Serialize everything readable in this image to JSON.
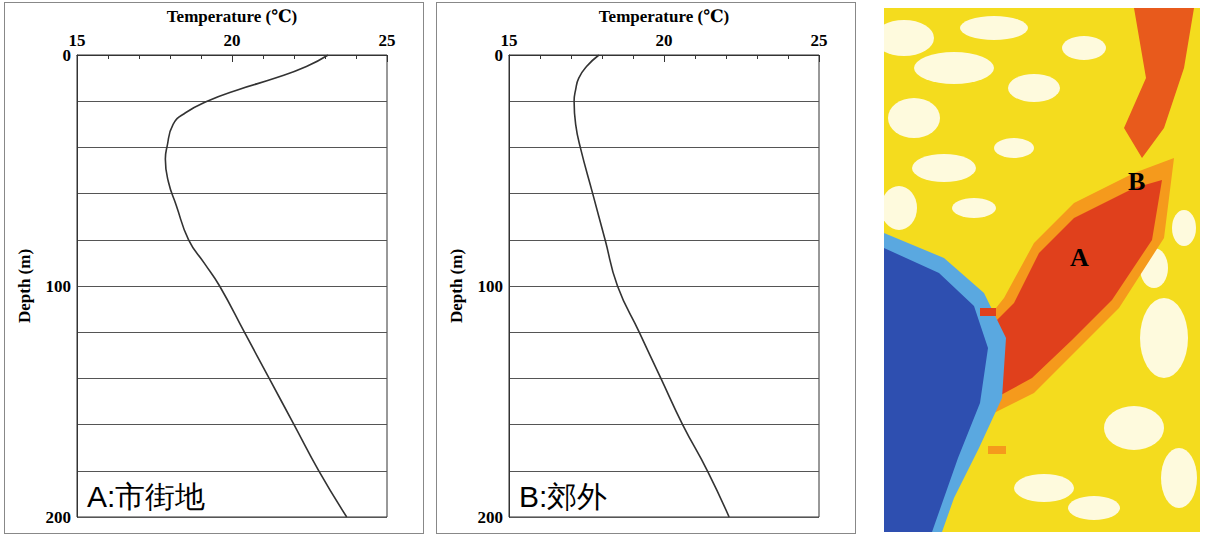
{
  "chart_data": [
    {
      "type": "line",
      "annotation": "A:市街地",
      "x_label": "Temperature (℃)",
      "y_label": "Depth (m)",
      "x": [
        23.1,
        22.4,
        21.4,
        20.2,
        19.2,
        18.5,
        18.1,
        17.9,
        17.85,
        17.95,
        18.2,
        18.6,
        19.1,
        19.6,
        20.4,
        21.2,
        22.0,
        22.8,
        23.7
      ],
      "y": [
        0,
        5,
        10,
        15,
        20,
        25,
        30,
        40,
        45,
        55,
        65,
        80,
        90,
        100,
        120,
        140,
        160,
        180,
        200
      ],
      "color": "#333333",
      "xlim": [
        15,
        25
      ],
      "xticks": [
        15,
        20,
        25
      ],
      "ylim": [
        0,
        200
      ],
      "yticks": [
        0,
        100,
        200
      ],
      "grid": true
    },
    {
      "type": "line",
      "annotation": "B:郊外",
      "x_label": "Temperature (℃)",
      "y_label": "Depth (m)",
      "x": [
        17.9,
        17.5,
        17.25,
        17.15,
        17.1,
        17.15,
        17.3,
        17.7,
        18.1,
        18.5,
        19.2,
        19.9,
        20.6,
        21.4,
        22.1
      ],
      "y": [
        0,
        5,
        10,
        15,
        20,
        30,
        40,
        60,
        80,
        100,
        120,
        140,
        160,
        180,
        200
      ],
      "color": "#333333",
      "xlim": [
        15,
        25
      ],
      "xticks": [
        15,
        20,
        25
      ],
      "ylim": [
        0,
        200
      ],
      "yticks": [
        0,
        100,
        200
      ],
      "grid": true
    }
  ],
  "map": {
    "labels": [
      {
        "text": "A"
      },
      {
        "text": "B"
      }
    ]
  }
}
